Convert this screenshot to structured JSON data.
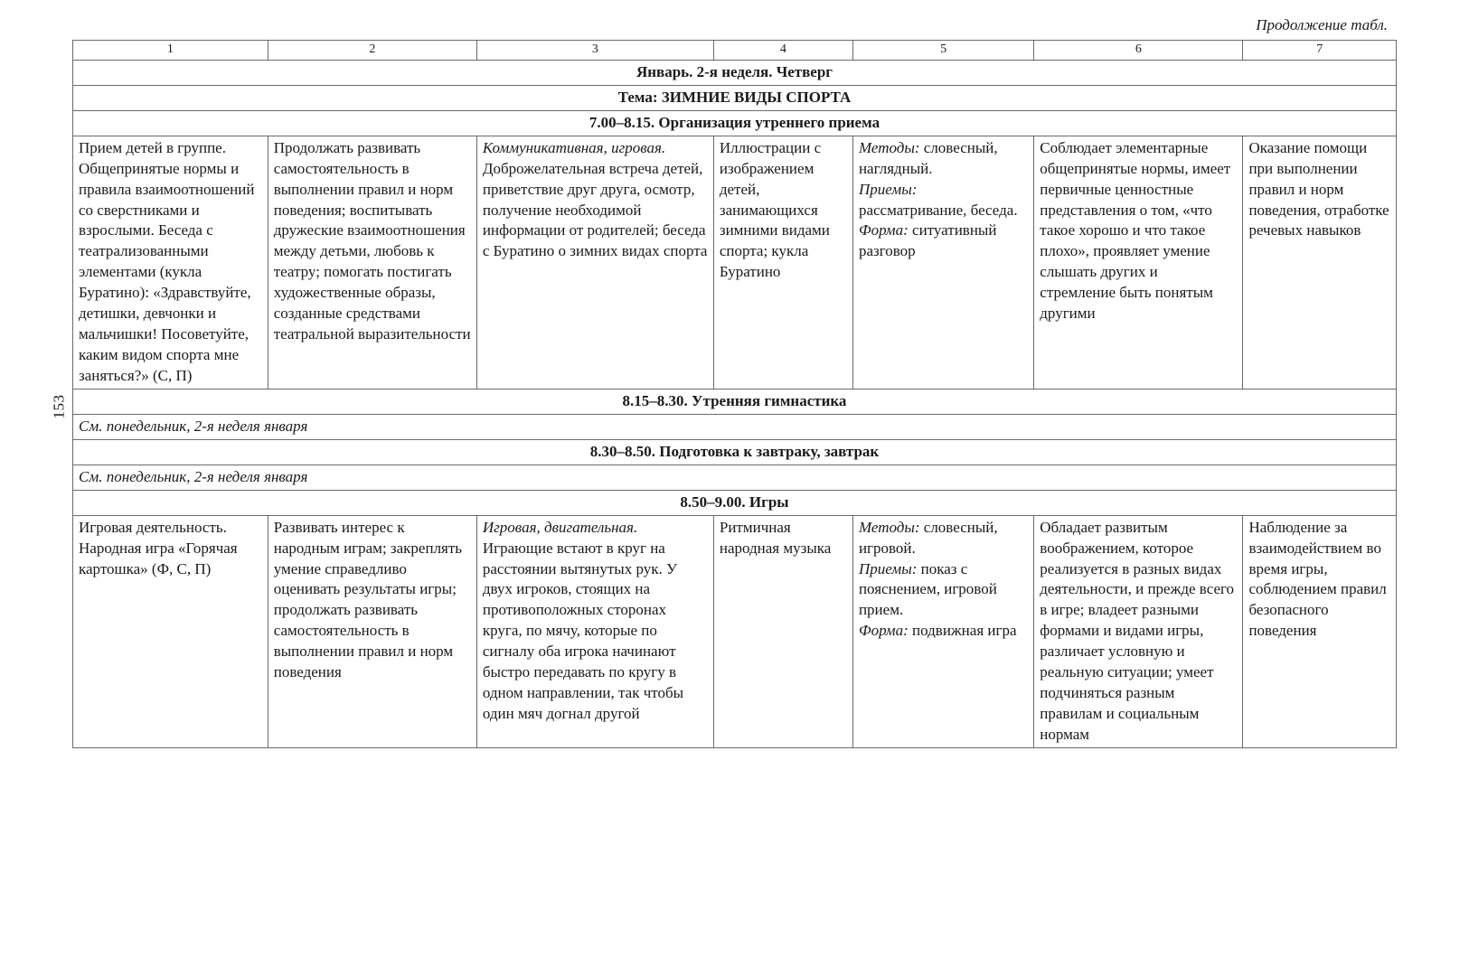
{
  "continuation": "Продолжение табл.",
  "page_number": "153",
  "columns": {
    "num_headers": [
      "1",
      "2",
      "3",
      "4",
      "5",
      "6",
      "7"
    ],
    "widths_pct": [
      14,
      15,
      17,
      10,
      13,
      15,
      11
    ]
  },
  "sections": {
    "day": "Январь. 2-я неделя. Четверг",
    "topic": "Тема: ЗИМНИЕ ВИДЫ СПОРТА",
    "block1_title": "7.00–8.15. Организация утреннего приема",
    "block2_title": "8.15–8.30. Утренняя гимнастика",
    "block2_ref": "См. понедельник, 2-я неделя января",
    "block3_title": "8.30–8.50. Подготовка к завтраку, завтрак",
    "block3_ref": "См. понедельник, 2-я неделя января",
    "block4_title": "8.50–9.00. Игры"
  },
  "row1": {
    "c1": "Прием детей в группе. Общепринятые нормы и правила взаимоотношений со сверстниками и взрослыми. Беседа с театрализованными элементами (кукла Буратино): «Здравствуйте, детишки, девчонки и мальчишки! Посоветуйте, каким видом спорта мне заняться?» (С, П)",
    "c2": "Продолжать развивать самостоятельность в выполнении правил и норм поведения; воспитывать дружеские взаимоотношения между детьми, любовь к театру; помогать постигать художественные образы, созданные средствами театральной выразительности",
    "c3_italic": "Коммуникативная, игровая.",
    "c3_rest": "Доброжелательная встреча детей, приветствие друг друга, осмотр, получение необходимой информации от родителей; беседа с Буратино о зимних видах спорта",
    "c4": "Иллюстрации с изображением детей, занимающихся зимними видами спорта; кукла Буратино",
    "c5_m_label": "Методы:",
    "c5_m": " словесный, наглядный.",
    "c5_p_label": "Приемы:",
    "c5_p": " рассматривание, беседа.",
    "c5_f_label": "Форма:",
    "c5_f": " ситуативный разговор",
    "c6": "Соблюдает элементарные общепринятые нормы, имеет первичные ценностные представления о том, «что такое хорошо и что такое плохо», проявляет умение слышать других и стремление быть понятым другими",
    "c7": "Оказание помощи при выполнении правил и норм поведения, отработке речевых навыков"
  },
  "row2": {
    "c1": "Игровая деятельность. Народная игра «Горячая картошка» (Ф, С, П)",
    "c2": "Развивать интерес к народным играм; закреплять умение справедливо оценивать результаты игры; продолжать развивать самостоятельность в выполнении правил и норм поведения",
    "c3_italic": "Игровая, двигательная.",
    "c3_rest": "Играющие встают в круг на расстоянии вытянутых рук. У двух игроков, стоящих на противоположных сторонах круга, по мячу, которые по сигналу оба игрока начинают быстро передавать по кругу в одном направлении, так чтобы один мяч догнал другой",
    "c4": "Ритмичная народная музыка",
    "c5_m_label": "Методы:",
    "c5_m": " словесный, игровой.",
    "c5_p_label": "Приемы:",
    "c5_p": " показ с пояснением, игровой прием.",
    "c5_f_label": "Форма:",
    "c5_f": " подвижная игра",
    "c6": "Обладает развитым воображением, которое реализуется в разных видах деятельности, и прежде всего в игре; владеет разными формами и видами игры, различает условную и реальную ситуации; умеет подчиняться разным правилам и социальным нормам",
    "c7": "Наблюдение за взаимодействием во время игры, соблюдением правил безопасного поведения"
  }
}
